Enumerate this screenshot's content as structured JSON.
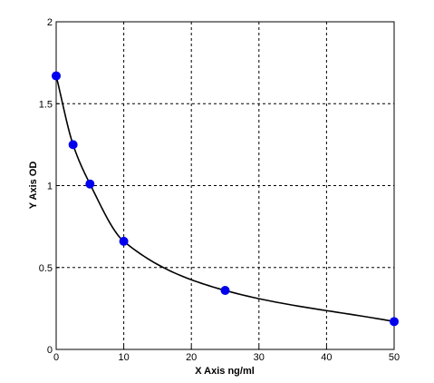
{
  "chart_data": {
    "type": "scatter",
    "title": "",
    "xlabel": "X  Axis ng/ml",
    "ylabel": "Y  Axis OD",
    "xlim": [
      0,
      50
    ],
    "ylim": [
      0,
      2
    ],
    "x_ticks": [
      0,
      10,
      20,
      30,
      40,
      50
    ],
    "y_ticks": [
      0,
      0.5,
      1,
      1.5,
      2
    ],
    "x_tick_labels": [
      "0",
      "10",
      "20",
      "30",
      "40",
      "50"
    ],
    "y_tick_labels": [
      "0",
      "0.5",
      "1",
      "1.5",
      "2"
    ],
    "grid": true,
    "legend": "none",
    "series": [
      {
        "x": [
          0,
          2.5,
          5,
          10,
          25,
          50
        ],
        "y": [
          1.67,
          1.25,
          1.01,
          0.66,
          0.36,
          0.17
        ],
        "color": "#0000ee",
        "fit_line_color": "#000000"
      }
    ]
  }
}
